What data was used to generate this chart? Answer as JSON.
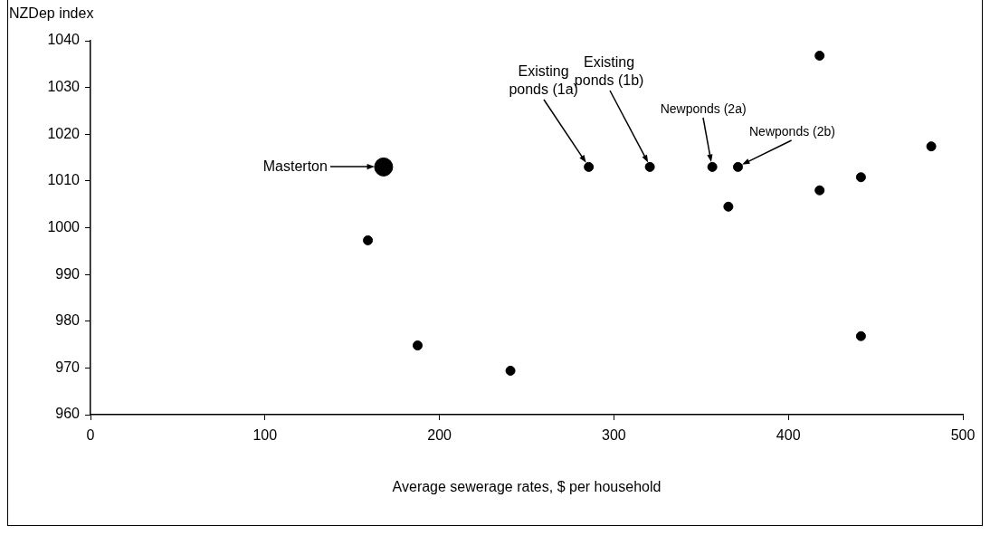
{
  "chart_data": {
    "type": "scatter",
    "xlabel": "Average sewerage rates, $ per household",
    "ylabel": "NZDep index",
    "xlim": [
      0,
      500
    ],
    "xticks": [
      0,
      100,
      200,
      300,
      400,
      500
    ],
    "ylim": [
      960,
      1040
    ],
    "yticks": [
      960,
      970,
      980,
      990,
      1000,
      1010,
      1020,
      1030,
      1040
    ],
    "grid": false,
    "legend": false,
    "marker": "circle",
    "series": [
      {
        "color": "#000000",
        "x": [
          168
        ],
        "values": [
          1013
        ]
      },
      {
        "color": "#000000",
        "x": [
          159,
          187.5,
          240.7,
          285.6,
          320.6,
          356.4,
          371.1,
          365.6,
          417.9,
          417.9,
          441.6,
          441.6,
          481.9
        ],
        "values": [
          997.3,
          974.8,
          969.4,
          1013,
          1013,
          1013,
          1013,
          1004.5,
          1036.8,
          1008,
          1010.8,
          976.8,
          1017.4
        ]
      }
    ],
    "annotations": [
      "Masterton",
      "Existing\nponds (1a)",
      "Existing\nponds (1b)",
      "Newponds (2a)",
      "Newponds (2b)"
    ]
  }
}
